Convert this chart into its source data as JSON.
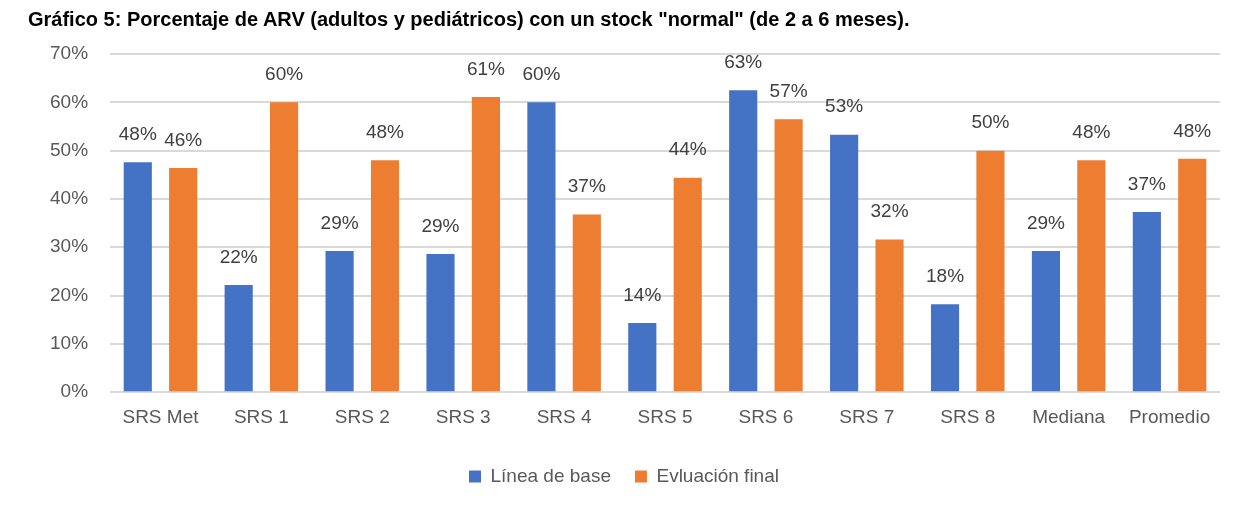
{
  "chart_data": {
    "type": "bar",
    "title": "Gráfico 5: Porcentaje de ARV (adultos y pediátricos) con un stock \"normal\" (de 2 a 6 meses).",
    "categories": [
      "SRS Met",
      "SRS 1",
      "SRS 2",
      "SRS 3",
      "SRS 4",
      "SRS 5",
      "SRS 6",
      "SRS 7",
      "SRS 8",
      "Mediana",
      "Promedio"
    ],
    "series": [
      {
        "name": "Línea de base",
        "color": "#4472c4",
        "values": [
          47.6,
          22.2,
          29.2,
          28.6,
          60,
          14.3,
          62.5,
          53.3,
          18.2,
          29.2,
          37.3
        ],
        "value_labels": [
          "48%",
          "22%",
          "29%",
          "29%",
          "60%",
          "14%",
          "63%",
          "53%",
          "18%",
          "29%",
          "37%"
        ]
      },
      {
        "name": "Evluación final",
        "color": "#ed7d31",
        "values": [
          46.4,
          60,
          48,
          61.1,
          36.8,
          44.4,
          56.5,
          31.6,
          50,
          48,
          48.3
        ],
        "value_labels": [
          "46%",
          "60%",
          "48%",
          "61%",
          "37%",
          "44%",
          "57%",
          "32%",
          "50%",
          "48%",
          "48%"
        ]
      }
    ],
    "ylim": [
      0,
      70
    ],
    "yticks": [
      {
        "value": 0,
        "label": "0%"
      },
      {
        "value": 10,
        "label": "10%"
      },
      {
        "value": 20,
        "label": "20%"
      },
      {
        "value": 30,
        "label": "30%"
      },
      {
        "value": 40,
        "label": "40%"
      },
      {
        "value": 50,
        "label": "50%"
      },
      {
        "value": 60,
        "label": "60%"
      },
      {
        "value": 70,
        "label": "70%"
      }
    ],
    "grid": "y",
    "legend": "bottom"
  }
}
